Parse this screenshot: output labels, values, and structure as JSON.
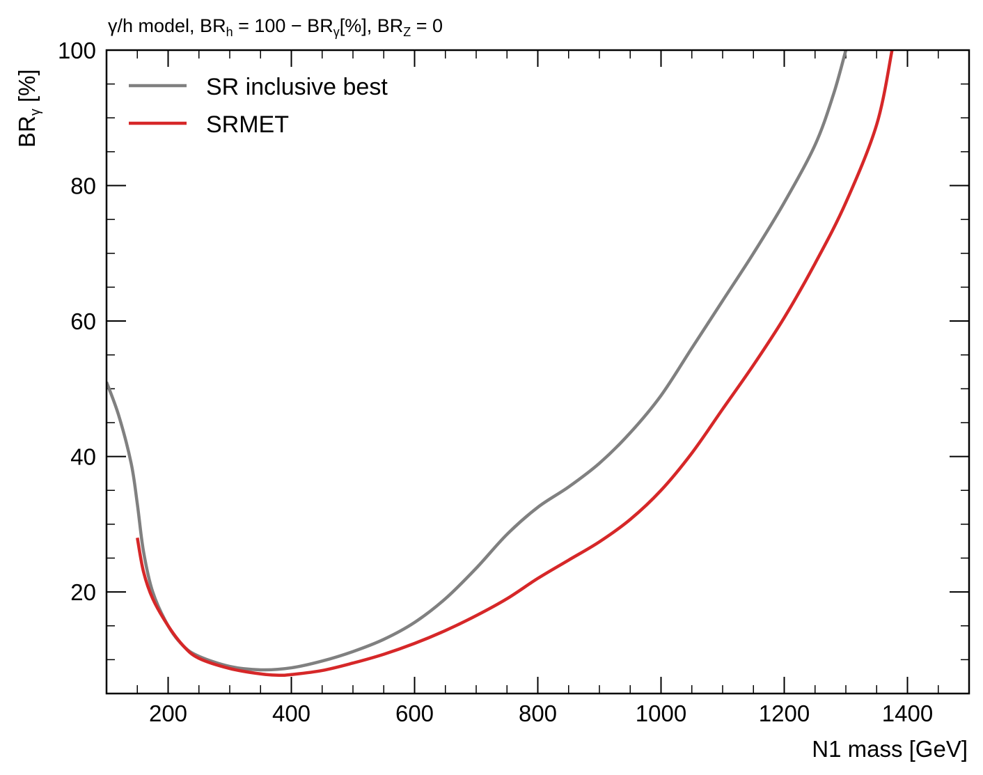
{
  "title": {
    "prefix": "γ/h model, BR",
    "h_sub": "h",
    "mid1": " = 100 − BR",
    "gamma_sub": "γ",
    "mid2": "[%], BR",
    "z_sub": "Z",
    "suffix": " = 0"
  },
  "chart_data": {
    "type": "line",
    "xlabel": "N1 mass [GeV]",
    "ylabel_main": "BR",
    "ylabel_sub": "γ",
    "ylabel_unit": " [%]",
    "xlim": [
      100,
      1500
    ],
    "ylim": [
      5,
      100
    ],
    "xticks": [
      200,
      400,
      600,
      800,
      1000,
      1200,
      1400
    ],
    "xtick_labels": [
      "200",
      "400",
      "600",
      "800",
      "1000",
      "1200",
      "1400"
    ],
    "yticks": [
      20,
      40,
      60,
      80,
      100
    ],
    "ytick_labels": [
      "20",
      "40",
      "60",
      "80",
      "100"
    ],
    "x_minor_step": 50,
    "y_minor_step": 5,
    "legend_position": "top-left",
    "series": [
      {
        "name": "SR inclusive best",
        "color": "#808080",
        "points": [
          [
            100,
            51
          ],
          [
            120,
            46
          ],
          [
            140,
            39
          ],
          [
            150,
            33
          ],
          [
            160,
            26
          ],
          [
            175,
            20
          ],
          [
            200,
            15
          ],
          [
            225,
            12
          ],
          [
            250,
            10.5
          ],
          [
            300,
            9
          ],
          [
            350,
            8.5
          ],
          [
            400,
            8.8
          ],
          [
            450,
            9.8
          ],
          [
            500,
            11.2
          ],
          [
            550,
            13
          ],
          [
            600,
            15.5
          ],
          [
            650,
            19
          ],
          [
            700,
            23.5
          ],
          [
            750,
            28.5
          ],
          [
            800,
            32.5
          ],
          [
            850,
            35.5
          ],
          [
            900,
            39
          ],
          [
            950,
            43.5
          ],
          [
            1000,
            49
          ],
          [
            1050,
            56
          ],
          [
            1100,
            63
          ],
          [
            1150,
            70
          ],
          [
            1200,
            77.5
          ],
          [
            1250,
            86
          ],
          [
            1280,
            93.5
          ],
          [
            1300,
            100
          ]
        ]
      },
      {
        "name": "SRMET",
        "color": "#d62728",
        "points": [
          [
            150,
            28
          ],
          [
            160,
            23
          ],
          [
            175,
            19
          ],
          [
            200,
            15
          ],
          [
            225,
            12
          ],
          [
            250,
            10.2
          ],
          [
            300,
            8.7
          ],
          [
            350,
            7.9
          ],
          [
            380,
            7.7
          ],
          [
            400,
            7.8
          ],
          [
            450,
            8.4
          ],
          [
            500,
            9.5
          ],
          [
            550,
            10.8
          ],
          [
            600,
            12.4
          ],
          [
            650,
            14.3
          ],
          [
            700,
            16.5
          ],
          [
            750,
            19
          ],
          [
            800,
            22
          ],
          [
            850,
            24.7
          ],
          [
            900,
            27.4
          ],
          [
            950,
            30.7
          ],
          [
            1000,
            35
          ],
          [
            1050,
            40.5
          ],
          [
            1100,
            47
          ],
          [
            1150,
            53.5
          ],
          [
            1200,
            60.5
          ],
          [
            1250,
            68.5
          ],
          [
            1300,
            77.5
          ],
          [
            1350,
            89
          ],
          [
            1375,
            100
          ]
        ]
      }
    ]
  }
}
